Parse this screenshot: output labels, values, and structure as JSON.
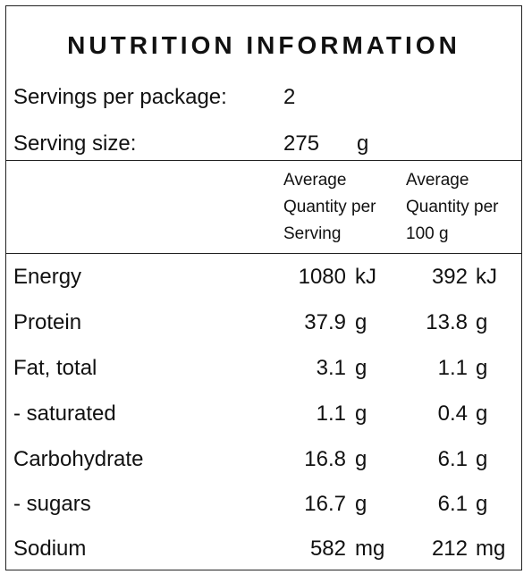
{
  "title": "NUTRITION INFORMATION",
  "servings": {
    "label": "Servings per package:",
    "value": "2"
  },
  "serving_size": {
    "label": "Serving size:",
    "value": "275",
    "unit": "g"
  },
  "columns": {
    "per_serving": [
      "Average",
      "Quantity per",
      "Serving"
    ],
    "per_100g": [
      "Average",
      "Quantity per",
      "100 g"
    ]
  },
  "rows": [
    {
      "name": "Energy",
      "serving": "1080",
      "serving_unit": "kJ",
      "per100": "392",
      "per100_unit": "kJ"
    },
    {
      "name": "Protein",
      "serving": "37.9",
      "serving_unit": "g",
      "per100": "13.8",
      "per100_unit": "g"
    },
    {
      "name": "Fat, total",
      "serving": "3.1",
      "serving_unit": "g",
      "per100": "1.1",
      "per100_unit": "g"
    },
    {
      "name": "- saturated",
      "serving": "1.1",
      "serving_unit": "g",
      "per100": "0.4",
      "per100_unit": "g"
    },
    {
      "name": "Carbohydrate",
      "serving": "16.8",
      "serving_unit": "g",
      "per100": "6.1",
      "per100_unit": "g"
    },
    {
      "name": "- sugars",
      "serving": "16.7",
      "serving_unit": "g",
      "per100": "6.1",
      "per100_unit": "g"
    },
    {
      "name": "Sodium",
      "serving": "582",
      "serving_unit": "mg",
      "per100": "212",
      "per100_unit": "mg"
    }
  ]
}
